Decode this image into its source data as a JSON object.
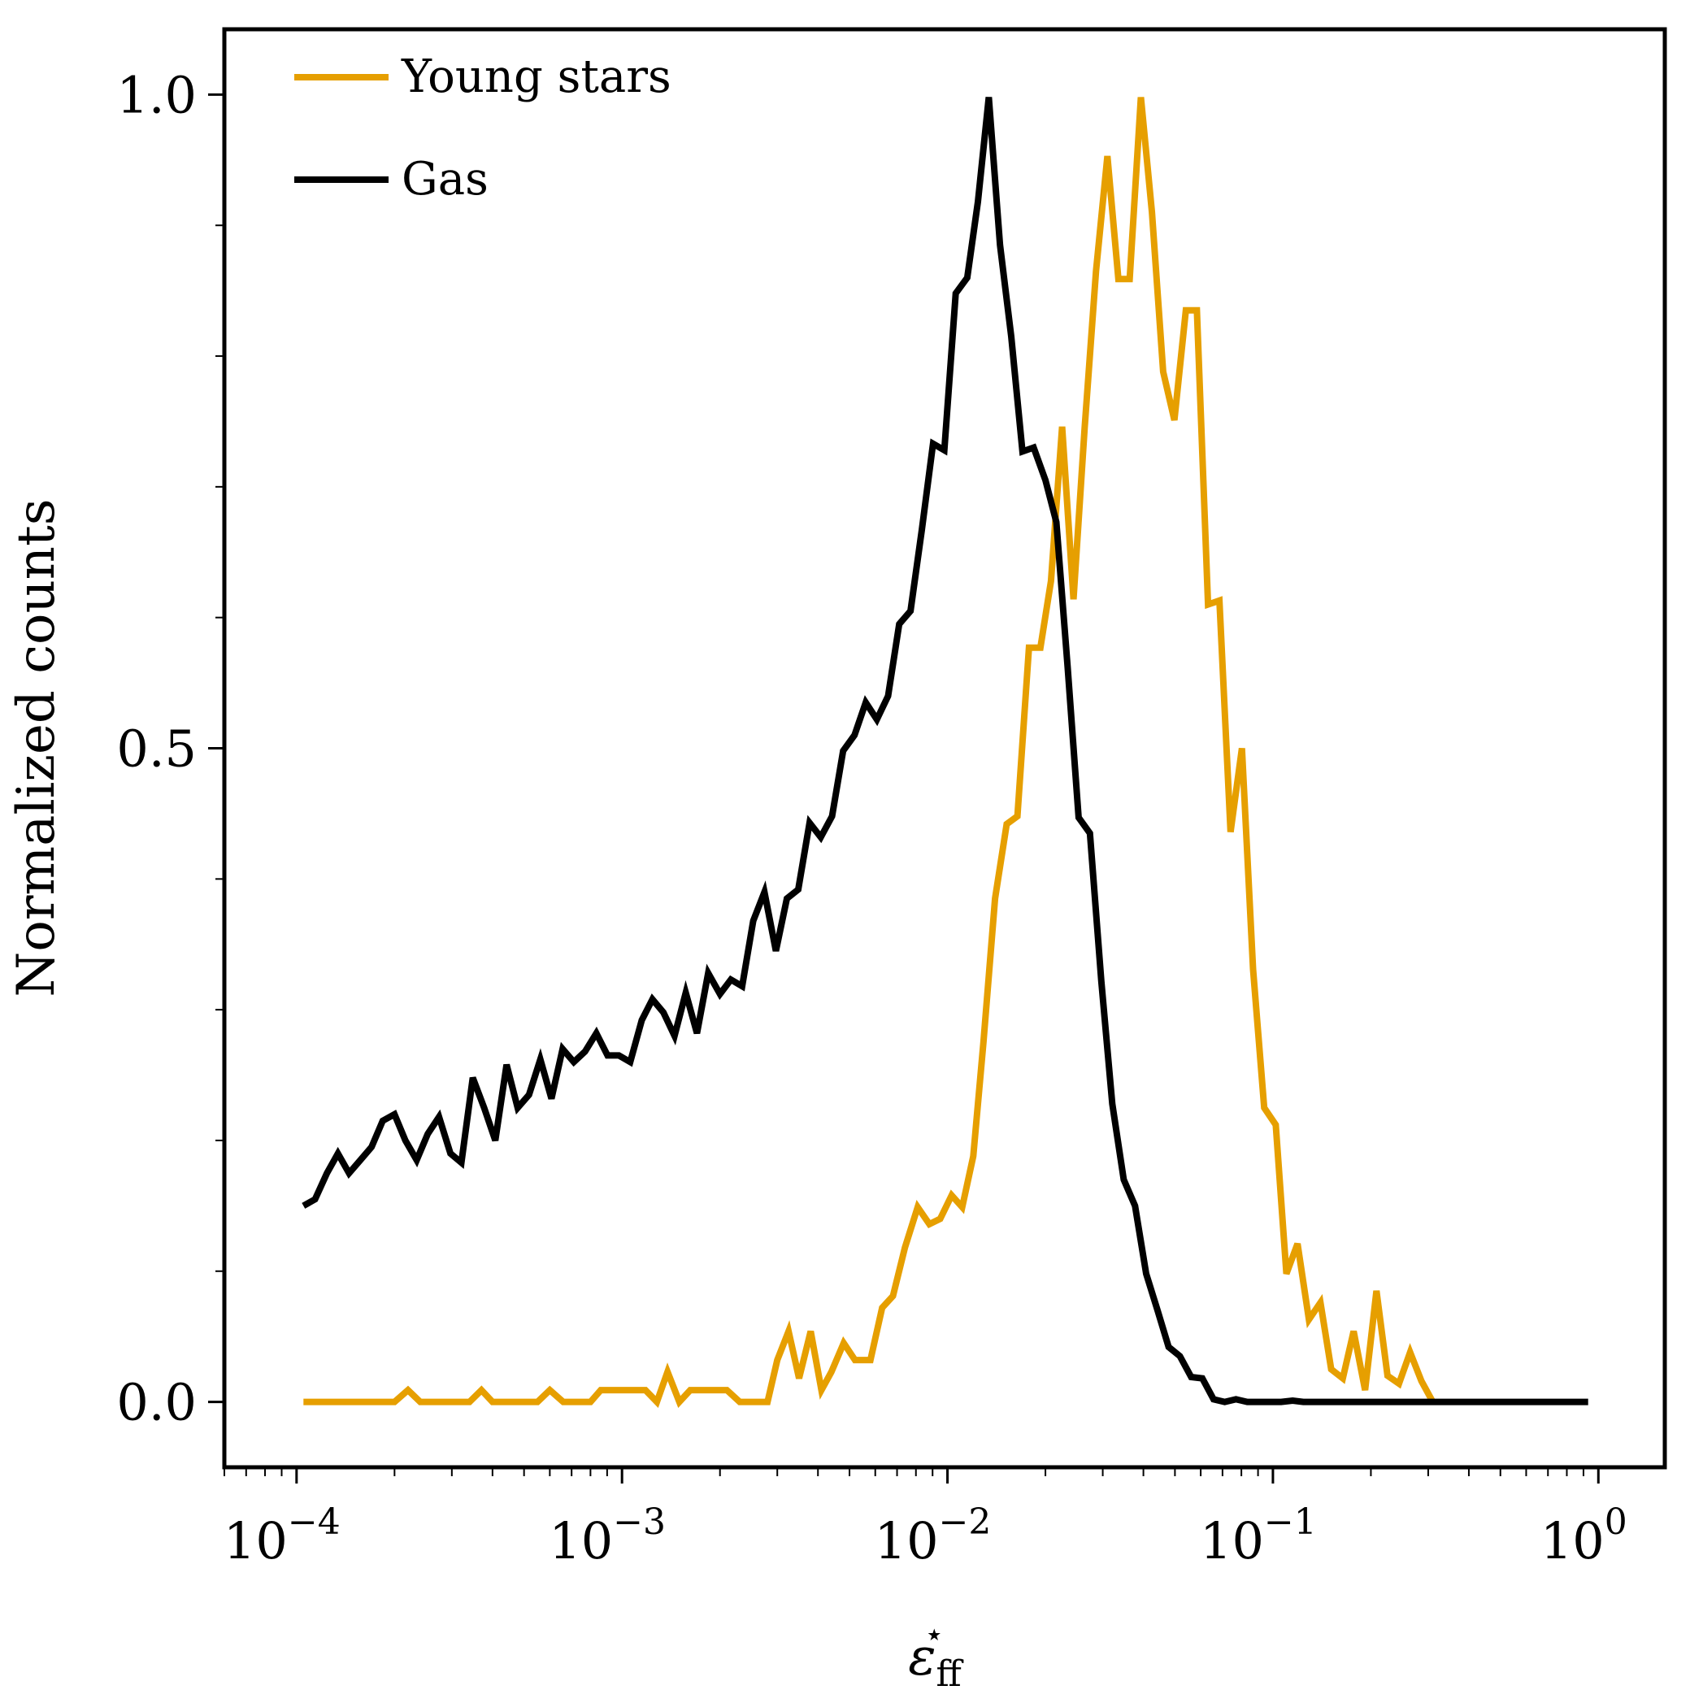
{
  "chart_data": {
    "type": "line",
    "title": "",
    "xlabel": "ε",
    "xlabel_sub": "ff",
    "xlabel_sup": "⋆",
    "ylabel": "Normalized counts",
    "x_scale": "log",
    "xlim": [
      6e-05,
      1.6
    ],
    "ylim": [
      -0.05,
      1.05
    ],
    "grid": false,
    "legend_position": "top-left",
    "x_ticks": [
      {
        "value": 0.0001,
        "base": "10",
        "exp": "−4"
      },
      {
        "value": 0.001,
        "base": "10",
        "exp": "−3"
      },
      {
        "value": 0.01,
        "base": "10",
        "exp": "−2"
      },
      {
        "value": 0.1,
        "base": "10",
        "exp": "−1"
      },
      {
        "value": 1,
        "base": "10",
        "exp": "0"
      }
    ],
    "y_ticks": [
      {
        "value": 0.0,
        "label": "0.0"
      },
      {
        "value": 0.5,
        "label": "0.5"
      },
      {
        "value": 1.0,
        "label": "1.0"
      }
    ],
    "y_minor_ticks": [
      0.1,
      0.2,
      0.3,
      0.4,
      0.6,
      0.7,
      0.8,
      0.9
    ],
    "series": [
      {
        "name": "Young stars",
        "color": "#E69F00",
        "points": [
          [
            0.000105,
            0.0
          ],
          [
            0.0002,
            0.0
          ],
          [
            0.00022,
            0.009
          ],
          [
            0.00024,
            0.0
          ],
          [
            0.00034,
            0.0
          ],
          [
            0.00037,
            0.009
          ],
          [
            0.0004,
            0.0
          ],
          [
            0.00055,
            0.0
          ],
          [
            0.0006,
            0.009
          ],
          [
            0.00066,
            0.0
          ],
          [
            0.0008,
            0.0
          ],
          [
            0.00086,
            0.009
          ],
          [
            0.00118,
            0.009
          ],
          [
            0.00128,
            0.0
          ],
          [
            0.00138,
            0.023
          ],
          [
            0.0015,
            0.0
          ],
          [
            0.00162,
            0.009
          ],
          [
            0.0021,
            0.009
          ],
          [
            0.0023,
            0.0
          ],
          [
            0.0028,
            0.0
          ],
          [
            0.003,
            0.032
          ],
          [
            0.00325,
            0.054
          ],
          [
            0.0035,
            0.018
          ],
          [
            0.0038,
            0.054
          ],
          [
            0.0041,
            0.009
          ],
          [
            0.0044,
            0.023
          ],
          [
            0.0048,
            0.045
          ],
          [
            0.0052,
            0.032
          ],
          [
            0.0058,
            0.032
          ],
          [
            0.0063,
            0.072
          ],
          [
            0.0068,
            0.081
          ],
          [
            0.0074,
            0.118
          ],
          [
            0.0081,
            0.149
          ],
          [
            0.0088,
            0.136
          ],
          [
            0.0095,
            0.14
          ],
          [
            0.0103,
            0.158
          ],
          [
            0.0111,
            0.149
          ],
          [
            0.012,
            0.188
          ],
          [
            0.0129,
            0.275
          ],
          [
            0.014,
            0.385
          ],
          [
            0.0152,
            0.442
          ],
          [
            0.0164,
            0.448
          ],
          [
            0.0178,
            0.577
          ],
          [
            0.0193,
            0.577
          ],
          [
            0.0208,
            0.628
          ],
          [
            0.0225,
            0.746
          ],
          [
            0.0244,
            0.614
          ],
          [
            0.0264,
            0.745
          ],
          [
            0.0286,
            0.865
          ],
          [
            0.031,
            0.953
          ],
          [
            0.0335,
            0.859
          ],
          [
            0.0363,
            0.859
          ],
          [
            0.0393,
            0.998
          ],
          [
            0.0425,
            0.91
          ],
          [
            0.046,
            0.788
          ],
          [
            0.0498,
            0.751
          ],
          [
            0.054,
            0.835
          ],
          [
            0.0584,
            0.835
          ],
          [
            0.0632,
            0.61
          ],
          [
            0.0685,
            0.613
          ],
          [
            0.0741,
            0.436
          ],
          [
            0.0803,
            0.5
          ],
          [
            0.0869,
            0.331
          ],
          [
            0.094,
            0.225
          ],
          [
            0.102,
            0.212
          ],
          [
            0.11,
            0.098
          ],
          [
            0.119,
            0.121
          ],
          [
            0.129,
            0.063
          ],
          [
            0.14,
            0.076
          ],
          [
            0.151,
            0.025
          ],
          [
            0.164,
            0.018
          ],
          [
            0.177,
            0.054
          ],
          [
            0.192,
            0.009
          ],
          [
            0.208,
            0.085
          ],
          [
            0.225,
            0.02
          ],
          [
            0.244,
            0.014
          ],
          [
            0.264,
            0.038
          ],
          [
            0.286,
            0.016
          ],
          [
            0.31,
            0.0
          ]
        ]
      },
      {
        "name": "Gas",
        "color": "#000000",
        "points": [
          [
            0.000105,
            0.15
          ],
          [
            0.000114,
            0.155
          ],
          [
            0.000124,
            0.175
          ],
          [
            0.000134,
            0.19
          ],
          [
            0.000145,
            0.175
          ],
          [
            0.000157,
            0.185
          ],
          [
            0.00017,
            0.195
          ],
          [
            0.000184,
            0.215
          ],
          [
            0.0002,
            0.22
          ],
          [
            0.000216,
            0.2
          ],
          [
            0.000234,
            0.185
          ],
          [
            0.000253,
            0.205
          ],
          [
            0.000274,
            0.218
          ],
          [
            0.000297,
            0.19
          ],
          [
            0.000321,
            0.183
          ],
          [
            0.000348,
            0.248
          ],
          [
            0.000377,
            0.225
          ],
          [
            0.000408,
            0.2
          ],
          [
            0.000442,
            0.258
          ],
          [
            0.000478,
            0.225
          ],
          [
            0.000518,
            0.235
          ],
          [
            0.000561,
            0.262
          ],
          [
            0.000607,
            0.232
          ],
          [
            0.000657,
            0.27
          ],
          [
            0.000711,
            0.26
          ],
          [
            0.00077,
            0.268
          ],
          [
            0.000834,
            0.282
          ],
          [
            0.000903,
            0.265
          ],
          [
            0.000978,
            0.265
          ],
          [
            0.00106,
            0.26
          ],
          [
            0.00115,
            0.292
          ],
          [
            0.00124,
            0.308
          ],
          [
            0.00134,
            0.298
          ],
          [
            0.00145,
            0.28
          ],
          [
            0.00157,
            0.313
          ],
          [
            0.0017,
            0.282
          ],
          [
            0.00184,
            0.328
          ],
          [
            0.002,
            0.312
          ],
          [
            0.00216,
            0.323
          ],
          [
            0.00234,
            0.318
          ],
          [
            0.00253,
            0.368
          ],
          [
            0.00274,
            0.39
          ],
          [
            0.00297,
            0.345
          ],
          [
            0.00321,
            0.385
          ],
          [
            0.00348,
            0.392
          ],
          [
            0.00377,
            0.443
          ],
          [
            0.00408,
            0.432
          ],
          [
            0.00442,
            0.448
          ],
          [
            0.00478,
            0.498
          ],
          [
            0.00518,
            0.51
          ],
          [
            0.00561,
            0.535
          ],
          [
            0.00607,
            0.522
          ],
          [
            0.00657,
            0.54
          ],
          [
            0.00711,
            0.595
          ],
          [
            0.0077,
            0.605
          ],
          [
            0.00834,
            0.667
          ],
          [
            0.00903,
            0.733
          ],
          [
            0.00978,
            0.728
          ],
          [
            0.0106,
            0.848
          ],
          [
            0.0115,
            0.86
          ],
          [
            0.0124,
            0.918
          ],
          [
            0.0134,
            0.998
          ],
          [
            0.0145,
            0.885
          ],
          [
            0.0157,
            0.815
          ],
          [
            0.017,
            0.727
          ],
          [
            0.0184,
            0.73
          ],
          [
            0.02,
            0.705
          ],
          [
            0.0216,
            0.673
          ],
          [
            0.0234,
            0.562
          ],
          [
            0.0253,
            0.447
          ],
          [
            0.0274,
            0.435
          ],
          [
            0.0297,
            0.322
          ],
          [
            0.0321,
            0.228
          ],
          [
            0.0348,
            0.17
          ],
          [
            0.0377,
            0.15
          ],
          [
            0.0408,
            0.098
          ],
          [
            0.0442,
            0.07
          ],
          [
            0.0478,
            0.042
          ],
          [
            0.0518,
            0.035
          ],
          [
            0.0561,
            0.019
          ],
          [
            0.0607,
            0.018
          ],
          [
            0.0657,
            0.002
          ],
          [
            0.0711,
            0.0
          ],
          [
            0.077,
            0.002
          ],
          [
            0.0834,
            0.0
          ],
          [
            0.0903,
            0.0
          ],
          [
            0.0978,
            0.0
          ],
          [
            0.106,
            0.0
          ],
          [
            0.115,
            0.001
          ],
          [
            0.124,
            0.0
          ],
          [
            0.93,
            0.0
          ]
        ]
      }
    ]
  }
}
